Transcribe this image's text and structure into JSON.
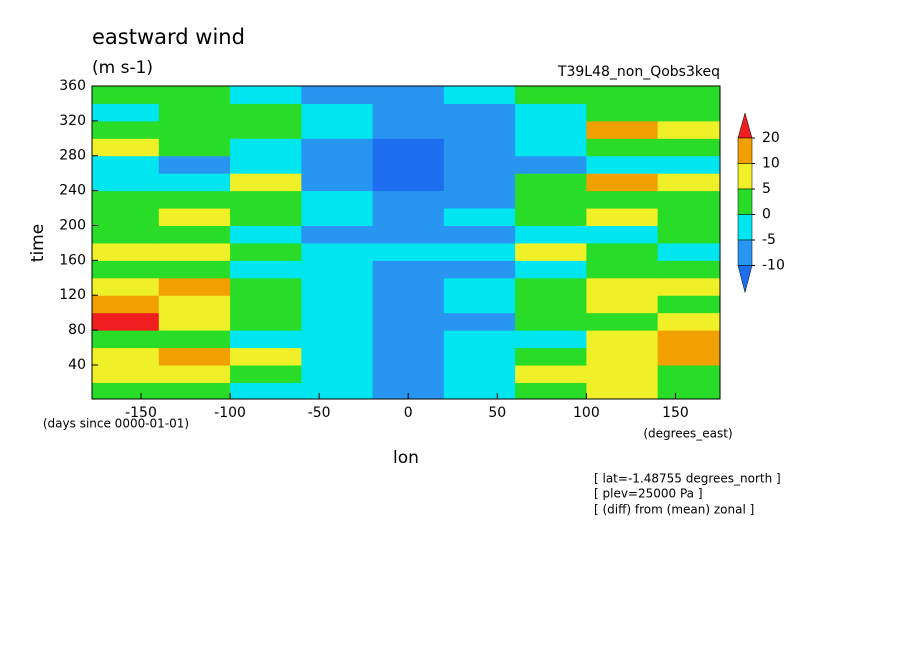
{
  "chart_data": {
    "type": "heatmap",
    "title": "eastward wind",
    "subtitle": "(m s-1)",
    "run_label": "T39L48_non_Qobs3keq",
    "x_label": "lon",
    "y_label": "time",
    "x_units": "(degrees_east)",
    "y_units": "(days since 0000-01-01)",
    "notes": [
      "[ lat=-1.48755 degrees_north ]",
      "[ plev=25000 Pa ]",
      "[ (diff) from (mean) zonal ]"
    ],
    "xlim": [
      -177.5,
      175
    ],
    "ylim": [
      1,
      360
    ],
    "xticks": [
      -150,
      -100,
      -50,
      0,
      50,
      100,
      150
    ],
    "yticks": [
      40,
      80,
      120,
      160,
      200,
      240,
      280,
      320,
      360
    ],
    "x": [
      -160,
      -120,
      -80,
      -40,
      0,
      40,
      80,
      120,
      160
    ],
    "y": [
      10,
      30,
      50,
      70,
      90,
      110,
      130,
      150,
      170,
      190,
      210,
      230,
      250,
      270,
      290,
      310,
      330,
      350
    ],
    "values": [
      [
        3,
        2,
        -3,
        -4,
        -6,
        -2,
        4,
        6,
        2
      ],
      [
        5,
        8,
        1,
        -2,
        -7,
        -3,
        5,
        9,
        4
      ],
      [
        9,
        12,
        6,
        -1,
        -6,
        -4,
        2,
        8,
        14
      ],
      [
        4,
        3,
        -2,
        -5,
        -8,
        -5,
        -1,
        6,
        16
      ],
      [
        22,
        8,
        2,
        -3,
        -7,
        -6,
        0,
        4,
        8
      ],
      [
        14,
        6,
        0,
        -4,
        -9,
        -4,
        3,
        5,
        2
      ],
      [
        6,
        10,
        3,
        -2,
        -6,
        -3,
        2,
        7,
        5
      ],
      [
        2,
        4,
        -1,
        -4,
        -8,
        -6,
        -2,
        3,
        1
      ],
      [
        5,
        7,
        3,
        -1,
        -5,
        -2,
        6,
        4,
        -2
      ],
      [
        1,
        2,
        -2,
        -6,
        -9,
        -7,
        -3,
        -1,
        3
      ],
      [
        3,
        5,
        2,
        -3,
        -7,
        -4,
        1,
        6,
        2
      ],
      [
        0,
        3,
        4,
        -2,
        -6,
        -6,
        0,
        4,
        1
      ],
      [
        -3,
        -1,
        6,
        -8,
        -11,
        -8,
        2,
        18,
        6
      ],
      [
        -5,
        -6,
        -4,
        -9,
        -12,
        -10,
        -6,
        -3,
        -2
      ],
      [
        6,
        2,
        -3,
        -7,
        -11,
        -8,
        -4,
        1,
        3
      ],
      [
        2,
        4,
        1,
        -4,
        -8,
        -6,
        -1,
        14,
        5
      ],
      [
        -2,
        1,
        3,
        -5,
        -10,
        -7,
        -3,
        2,
        4
      ],
      [
        3,
        0,
        -4,
        -6,
        -9,
        -5,
        0,
        3,
        1
      ]
    ],
    "levels": [
      -10,
      -5,
      0,
      5,
      10,
      20
    ],
    "colors": [
      "#1e6ef0",
      "#2896f0",
      "#00e6f0",
      "#28dc28",
      "#f0f028",
      "#f0a000",
      "#f01e1e"
    ]
  }
}
